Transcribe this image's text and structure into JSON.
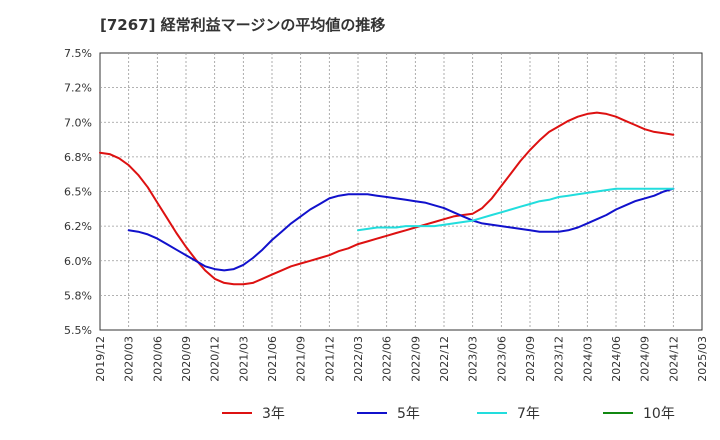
{
  "chart_data": {
    "type": "line",
    "title": "[7267]  経常利益マージンの平均値の推移",
    "xlabel": "",
    "ylabel": "",
    "ylim": [
      5.5,
      7.5
    ],
    "yticks": [
      5.5,
      5.75,
      6.0,
      6.25,
      6.5,
      6.75,
      7.0,
      7.25,
      7.5
    ],
    "ytick_labels": [
      "5.5%",
      "5.8%",
      "6.0%",
      "6.2%",
      "6.5%",
      "6.8%",
      "7.0%",
      "7.2%",
      "7.5%"
    ],
    "x_categories": [
      "2019/12",
      "2020/03",
      "2020/06",
      "2020/09",
      "2020/12",
      "2021/03",
      "2021/06",
      "2021/09",
      "2021/12",
      "2022/03",
      "2022/06",
      "2022/09",
      "2022/12",
      "2023/03",
      "2023/06",
      "2023/09",
      "2023/12",
      "2024/03",
      "2024/06",
      "2024/09",
      "2024/12",
      "2025/03"
    ],
    "grid": true,
    "legend_position": "bottom",
    "colors": {
      "3年": "#dd1111",
      "5年": "#1111cc",
      "7年": "#22dddd",
      "10年": "#118811"
    },
    "series": [
      {
        "name": "3年",
        "color": "#dd1111",
        "x": [
          "2019/12",
          "2020/01",
          "2020/02",
          "2020/03",
          "2020/04",
          "2020/05",
          "2020/06",
          "2020/07",
          "2020/08",
          "2020/09",
          "2020/10",
          "2020/11",
          "2020/12",
          "2021/01",
          "2021/02",
          "2021/03",
          "2021/04",
          "2021/05",
          "2021/06",
          "2021/07",
          "2021/08",
          "2021/09",
          "2021/10",
          "2021/11",
          "2021/12",
          "2022/01",
          "2022/02",
          "2022/03",
          "2022/04",
          "2022/05",
          "2022/06",
          "2022/07",
          "2022/08",
          "2022/09",
          "2022/10",
          "2022/11",
          "2022/12",
          "2023/01",
          "2023/02",
          "2023/03",
          "2023/04",
          "2023/05",
          "2023/06",
          "2023/07",
          "2023/08",
          "2023/09",
          "2023/10",
          "2023/11",
          "2023/12",
          "2024/01",
          "2024/02",
          "2024/03",
          "2024/04",
          "2024/05",
          "2024/06",
          "2024/07",
          "2024/08",
          "2024/09",
          "2024/10",
          "2024/11",
          "2024/12"
        ],
        "values": [
          6.78,
          6.77,
          6.74,
          6.69,
          6.62,
          6.53,
          6.42,
          6.31,
          6.2,
          6.1,
          6.01,
          5.93,
          5.87,
          5.84,
          5.83,
          5.83,
          5.84,
          5.87,
          5.9,
          5.93,
          5.96,
          5.98,
          6.0,
          6.02,
          6.04,
          6.07,
          6.09,
          6.12,
          6.14,
          6.16,
          6.18,
          6.2,
          6.22,
          6.24,
          6.26,
          6.28,
          6.3,
          6.32,
          6.33,
          6.34,
          6.38,
          6.45,
          6.54,
          6.63,
          6.72,
          6.8,
          6.87,
          6.93,
          6.97,
          7.01,
          7.04,
          7.06,
          7.07,
          7.06,
          7.04,
          7.01,
          6.98,
          6.95,
          6.93,
          6.92,
          6.91
        ]
      },
      {
        "name": "5年",
        "color": "#1111cc",
        "x": [
          "2020/03",
          "2020/04",
          "2020/05",
          "2020/06",
          "2020/07",
          "2020/08",
          "2020/09",
          "2020/10",
          "2020/11",
          "2020/12",
          "2021/01",
          "2021/02",
          "2021/03",
          "2021/04",
          "2021/05",
          "2021/06",
          "2021/07",
          "2021/08",
          "2021/09",
          "2021/10",
          "2021/11",
          "2021/12",
          "2022/01",
          "2022/02",
          "2022/03",
          "2022/04",
          "2022/05",
          "2022/06",
          "2022/07",
          "2022/08",
          "2022/09",
          "2022/10",
          "2022/11",
          "2022/12",
          "2023/01",
          "2023/02",
          "2023/03",
          "2023/04",
          "2023/05",
          "2023/06",
          "2023/07",
          "2023/08",
          "2023/09",
          "2023/10",
          "2023/11",
          "2023/12",
          "2024/01",
          "2024/02",
          "2024/03",
          "2024/04",
          "2024/05",
          "2024/06",
          "2024/07",
          "2024/08",
          "2024/09",
          "2024/10",
          "2024/11",
          "2024/12"
        ],
        "values": [
          6.22,
          6.21,
          6.19,
          6.16,
          6.12,
          6.08,
          6.04,
          6.0,
          5.96,
          5.94,
          5.93,
          5.94,
          5.97,
          6.02,
          6.08,
          6.15,
          6.21,
          6.27,
          6.32,
          6.37,
          6.41,
          6.45,
          6.47,
          6.48,
          6.48,
          6.48,
          6.47,
          6.46,
          6.45,
          6.44,
          6.43,
          6.42,
          6.4,
          6.38,
          6.35,
          6.32,
          6.29,
          6.27,
          6.26,
          6.25,
          6.24,
          6.23,
          6.22,
          6.21,
          6.21,
          6.21,
          6.22,
          6.24,
          6.27,
          6.3,
          6.33,
          6.37,
          6.4,
          6.43,
          6.45,
          6.47,
          6.5,
          6.52
        ]
      },
      {
        "name": "7年",
        "color": "#22dddd",
        "x": [
          "2022/03",
          "2022/04",
          "2022/05",
          "2022/06",
          "2022/07",
          "2022/08",
          "2022/09",
          "2022/10",
          "2022/11",
          "2022/12",
          "2023/01",
          "2023/02",
          "2023/03",
          "2023/04",
          "2023/05",
          "2023/06",
          "2023/07",
          "2023/08",
          "2023/09",
          "2023/10",
          "2023/11",
          "2023/12",
          "2024/01",
          "2024/02",
          "2024/03",
          "2024/04",
          "2024/05",
          "2024/06",
          "2024/07",
          "2024/08",
          "2024/09",
          "2024/10",
          "2024/11",
          "2024/12"
        ],
        "values": [
          6.22,
          6.23,
          6.24,
          6.24,
          6.24,
          6.25,
          6.25,
          6.25,
          6.25,
          6.26,
          6.27,
          6.28,
          6.29,
          6.31,
          6.33,
          6.35,
          6.37,
          6.39,
          6.41,
          6.43,
          6.44,
          6.46,
          6.47,
          6.48,
          6.49,
          6.5,
          6.51,
          6.52,
          6.52,
          6.52,
          6.52,
          6.52,
          6.52,
          6.52
        ]
      },
      {
        "name": "10年",
        "color": "#118811",
        "x": [],
        "values": []
      }
    ]
  }
}
